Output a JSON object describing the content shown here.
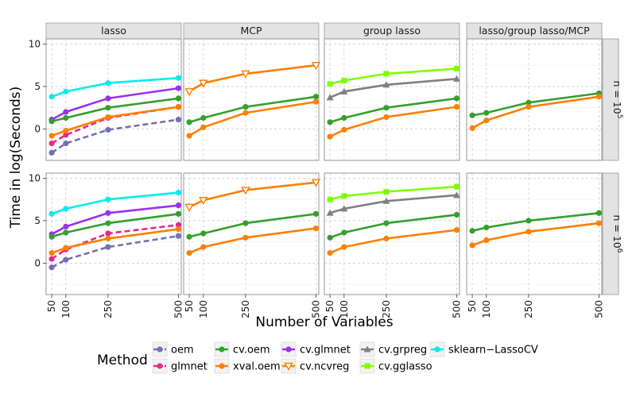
{
  "chart_data": {
    "type": "line",
    "xlabel": "Number of Variables",
    "ylabel": "Time in log(Seconds)",
    "x_ticks": [
      50,
      100,
      250,
      500
    ],
    "y_ticks": [
      0,
      5,
      10
    ],
    "xlim": [
      30,
      510
    ],
    "ylim": [
      -3.7,
      10.6
    ],
    "columns": [
      "lasso",
      "MCP",
      "group lasso",
      "lasso/group lasso/MCP"
    ],
    "rows": [
      {
        "label_base": "n = 10",
        "label_exp": "5"
      },
      {
        "label_base": "n = 10",
        "label_exp": "6"
      }
    ],
    "legend": {
      "title": "Method",
      "entries": [
        {
          "key": "oem",
          "label": "oem",
          "color": "#7570b3",
          "dashed": true,
          "marker": "circle"
        },
        {
          "key": "glmnet",
          "label": "glmnet",
          "color": "#e7298a",
          "dashed": true,
          "marker": "circle"
        },
        {
          "key": "cv_oem",
          "label": "cv.oem",
          "color": "#33a02c",
          "dashed": false,
          "marker": "circle"
        },
        {
          "key": "xval_oem",
          "label": "xval.oem",
          "color": "#ff7f00",
          "dashed": false,
          "marker": "circle"
        },
        {
          "key": "cv_glmnet",
          "label": "cv.glmnet",
          "color": "#9b30f0",
          "dashed": false,
          "marker": "circle"
        },
        {
          "key": "cv_ncvreg",
          "label": "cv.ncvreg",
          "color": "#ff7f00",
          "dashed": false,
          "marker": "triangle-open"
        },
        {
          "key": "cv_grpreg",
          "label": "cv.grpreg",
          "color": "#808080",
          "dashed": false,
          "marker": "triangle"
        },
        {
          "key": "cv_gglasso",
          "label": "cv.gglasso",
          "color": "#7fff00",
          "dashed": false,
          "marker": "square"
        },
        {
          "key": "sklearn",
          "label": "sklearn−LassoCV",
          "color": "#00eeee",
          "dashed": false,
          "marker": "circle"
        }
      ]
    },
    "panels": [
      {
        "row": 0,
        "col": 0,
        "series": [
          {
            "method": "sklearn",
            "x": [
              50,
              100,
              250,
              500
            ],
            "y": [
              3.8,
              4.4,
              5.4,
              6.0
            ]
          },
          {
            "method": "cv_glmnet",
            "x": [
              50,
              100,
              250,
              500
            ],
            "y": [
              1.1,
              2.0,
              3.6,
              4.8
            ]
          },
          {
            "method": "cv_oem",
            "x": [
              50,
              100,
              250,
              500
            ],
            "y": [
              0.9,
              1.3,
              2.5,
              3.6
            ]
          },
          {
            "method": "glmnet",
            "x": [
              50,
              100,
              250,
              500
            ],
            "y": [
              -1.7,
              -0.7,
              1.3,
              2.6
            ]
          },
          {
            "method": "xval_oem",
            "x": [
              50,
              100,
              250,
              500
            ],
            "y": [
              -0.8,
              -0.2,
              1.4,
              2.6
            ]
          },
          {
            "method": "oem",
            "x": [
              50,
              100,
              250,
              500
            ],
            "y": [
              -2.8,
              -1.7,
              -0.1,
              1.1
            ]
          }
        ]
      },
      {
        "row": 0,
        "col": 1,
        "series": [
          {
            "method": "cv_ncvreg",
            "x": [
              50,
              100,
              250,
              500
            ],
            "y": [
              4.4,
              5.4,
              6.5,
              7.5
            ]
          },
          {
            "method": "cv_oem",
            "x": [
              50,
              100,
              250,
              500
            ],
            "y": [
              0.8,
              1.3,
              2.6,
              3.8
            ]
          },
          {
            "method": "xval_oem",
            "x": [
              50,
              100,
              250,
              500
            ],
            "y": [
              -0.8,
              0.2,
              1.9,
              3.2
            ]
          }
        ]
      },
      {
        "row": 0,
        "col": 2,
        "series": [
          {
            "method": "cv_gglasso",
            "x": [
              50,
              100,
              250,
              500
            ],
            "y": [
              5.3,
              5.7,
              6.5,
              7.1
            ]
          },
          {
            "method": "cv_grpreg",
            "x": [
              50,
              100,
              250,
              500
            ],
            "y": [
              3.7,
              4.4,
              5.2,
              5.9
            ]
          },
          {
            "method": "cv_oem",
            "x": [
              50,
              100,
              250,
              500
            ],
            "y": [
              0.8,
              1.3,
              2.5,
              3.6
            ]
          },
          {
            "method": "xval_oem",
            "x": [
              50,
              100,
              250,
              500
            ],
            "y": [
              -0.9,
              -0.1,
              1.4,
              2.6
            ]
          }
        ]
      },
      {
        "row": 0,
        "col": 3,
        "series": [
          {
            "method": "cv_oem",
            "x": [
              50,
              100,
              250,
              500
            ],
            "y": [
              1.6,
              1.9,
              3.1,
              4.2
            ]
          },
          {
            "method": "xval_oem",
            "x": [
              50,
              100,
              250,
              500
            ],
            "y": [
              0.1,
              1.0,
              2.6,
              3.8
            ]
          }
        ]
      },
      {
        "row": 1,
        "col": 0,
        "series": [
          {
            "method": "sklearn",
            "x": [
              50,
              100,
              250,
              500
            ],
            "y": [
              5.8,
              6.4,
              7.5,
              8.3
            ]
          },
          {
            "method": "cv_glmnet",
            "x": [
              50,
              100,
              250,
              500
            ],
            "y": [
              3.4,
              4.3,
              5.9,
              6.8
            ]
          },
          {
            "method": "cv_oem",
            "x": [
              50,
              100,
              250,
              500
            ],
            "y": [
              3.1,
              3.6,
              4.7,
              5.8
            ]
          },
          {
            "method": "glmnet",
            "x": [
              50,
              100,
              250,
              500
            ],
            "y": [
              0.5,
              1.6,
              3.5,
              4.5
            ]
          },
          {
            "method": "xval_oem",
            "x": [
              50,
              100,
              250,
              500
            ],
            "y": [
              1.2,
              1.8,
              2.9,
              4.0
            ]
          },
          {
            "method": "oem",
            "x": [
              50,
              100,
              250,
              500
            ],
            "y": [
              -0.5,
              0.4,
              1.9,
              3.2
            ]
          }
        ]
      },
      {
        "row": 1,
        "col": 1,
        "series": [
          {
            "method": "cv_ncvreg",
            "x": [
              50,
              100,
              250,
              500
            ],
            "y": [
              6.6,
              7.4,
              8.6,
              9.5
            ]
          },
          {
            "method": "cv_oem",
            "x": [
              50,
              100,
              250,
              500
            ],
            "y": [
              3.1,
              3.5,
              4.7,
              5.8
            ]
          },
          {
            "method": "xval_oem",
            "x": [
              50,
              100,
              250,
              500
            ],
            "y": [
              1.2,
              1.9,
              3.0,
              4.1
            ]
          }
        ]
      },
      {
        "row": 1,
        "col": 2,
        "series": [
          {
            "method": "cv_gglasso",
            "x": [
              50,
              100,
              250,
              500
            ],
            "y": [
              7.5,
              7.9,
              8.4,
              9.0
            ]
          },
          {
            "method": "cv_grpreg",
            "x": [
              50,
              100,
              250,
              500
            ],
            "y": [
              5.9,
              6.4,
              7.3,
              8.0
            ]
          },
          {
            "method": "cv_oem",
            "x": [
              50,
              100,
              250,
              500
            ],
            "y": [
              3.0,
              3.6,
              4.7,
              5.7
            ]
          },
          {
            "method": "xval_oem",
            "x": [
              50,
              100,
              250,
              500
            ],
            "y": [
              1.2,
              1.9,
              2.9,
              3.9
            ]
          }
        ]
      },
      {
        "row": 1,
        "col": 3,
        "series": [
          {
            "method": "cv_oem",
            "x": [
              50,
              100,
              250,
              500
            ],
            "y": [
              3.8,
              4.2,
              5.0,
              5.9
            ]
          },
          {
            "method": "xval_oem",
            "x": [
              50,
              100,
              250,
              500
            ],
            "y": [
              2.1,
              2.7,
              3.7,
              4.7
            ]
          }
        ]
      }
    ]
  }
}
